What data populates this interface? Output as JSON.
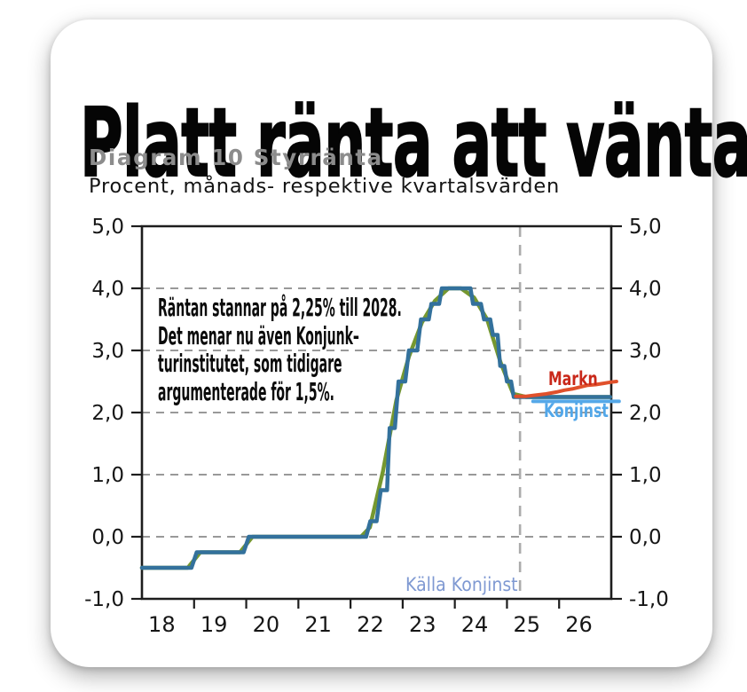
{
  "headline": "Platt ränta att vänta",
  "chart_header": {
    "title": "Diagram 10 Styrränta",
    "subtitle": "Procent, månads- respektive kvartalsvärden"
  },
  "annotation": {
    "text": "Räntan stannar på 2,25% till 2028.\nDet menar nu även Konjunk–\nturinstitutet, som tidigare\nargumenterade för 1,5%."
  },
  "labels": {
    "markn": "Markn",
    "konjinst": "Konjinst",
    "source": "Källa Konjinst"
  },
  "colors": {
    "headline": "#050505",
    "title_gray": "#8c8c8c",
    "markn_label": "#c9281a",
    "markn_line": "#e0502b",
    "konjinst_label": "#52a7e9",
    "konjinst_line": "#55a8e8",
    "monthly_line": "#33719c",
    "quarterly_line": "#76982f",
    "source_text": "#7f99d2",
    "gridline": "#999999",
    "divider": "#ababab",
    "axis": "#1d1d1d"
  },
  "chart_data": {
    "type": "line",
    "title": "Diagram 10 Styrränta",
    "subtitle": "Procent, månads- respektive kvartalsvärden",
    "xlim": [
      2018,
      2027
    ],
    "ylim": [
      -1,
      5
    ],
    "grid": "dashed horizontal at 0..4, solid box frame",
    "forecast_divider_x": 2025.25,
    "dashed_gridlines": [
      0,
      1,
      2,
      3,
      4
    ],
    "y_ticks": [
      {
        "v": 5,
        "label": "5,0"
      },
      {
        "v": 4,
        "label": "4,0"
      },
      {
        "v": 3,
        "label": "3,0"
      },
      {
        "v": 2,
        "label": "2,0"
      },
      {
        "v": 1,
        "label": "1,0"
      },
      {
        "v": 0,
        "label": "0,0"
      },
      {
        "v": -1,
        "label": "-1,0"
      }
    ],
    "x_labels": [
      {
        "year": 2018,
        "label": "18"
      },
      {
        "year": 2019,
        "label": "19"
      },
      {
        "year": 2020,
        "label": "20"
      },
      {
        "year": 2021,
        "label": "21"
      },
      {
        "year": 2022,
        "label": "22"
      },
      {
        "year": 2023,
        "label": "23"
      },
      {
        "year": 2024,
        "label": "24"
      },
      {
        "year": 2025,
        "label": "25"
      },
      {
        "year": 2026,
        "label": "26"
      }
    ],
    "series": [
      {
        "name": "styrranta-kvartalsvarden",
        "color": "#76982f",
        "stroke_width": 4.5,
        "points": [
          [
            2018.0,
            -0.5
          ],
          [
            2018.88,
            -0.5
          ],
          [
            2019.12,
            -0.25
          ],
          [
            2019.88,
            -0.25
          ],
          [
            2020.12,
            0.0
          ],
          [
            2022.2,
            0.0
          ],
          [
            2022.37,
            0.15
          ],
          [
            2022.62,
            1.05
          ],
          [
            2022.88,
            2.2
          ],
          [
            2023.12,
            2.9
          ],
          [
            2023.37,
            3.45
          ],
          [
            2023.62,
            3.8
          ],
          [
            2023.88,
            4.0
          ],
          [
            2024.12,
            4.0
          ],
          [
            2024.37,
            3.85
          ],
          [
            2024.62,
            3.5
          ],
          [
            2024.88,
            2.8
          ],
          [
            2025.12,
            2.3
          ],
          [
            2025.37,
            2.25
          ],
          [
            2026.98,
            2.25
          ]
        ]
      },
      {
        "name": "styrranta-manadsvarden",
        "color": "#33719c",
        "stroke_width": 4.5,
        "points": [
          [
            2018.0,
            -0.5
          ],
          [
            2018.95,
            -0.5
          ],
          [
            2019.05,
            -0.25
          ],
          [
            2019.95,
            -0.25
          ],
          [
            2020.05,
            0.0
          ],
          [
            2022.3,
            0.0
          ],
          [
            2022.38,
            0.25
          ],
          [
            2022.5,
            0.25
          ],
          [
            2022.58,
            0.75
          ],
          [
            2022.7,
            0.75
          ],
          [
            2022.75,
            1.75
          ],
          [
            2022.85,
            1.75
          ],
          [
            2022.92,
            2.5
          ],
          [
            2023.05,
            2.5
          ],
          [
            2023.12,
            3.0
          ],
          [
            2023.28,
            3.0
          ],
          [
            2023.35,
            3.5
          ],
          [
            2023.5,
            3.5
          ],
          [
            2023.55,
            3.75
          ],
          [
            2023.7,
            3.75
          ],
          [
            2023.75,
            4.0
          ],
          [
            2024.3,
            4.0
          ],
          [
            2024.35,
            3.75
          ],
          [
            2024.5,
            3.75
          ],
          [
            2024.56,
            3.5
          ],
          [
            2024.68,
            3.5
          ],
          [
            2024.73,
            3.25
          ],
          [
            2024.82,
            3.25
          ],
          [
            2024.87,
            2.75
          ],
          [
            2024.95,
            2.75
          ],
          [
            2025.0,
            2.5
          ],
          [
            2025.08,
            2.5
          ],
          [
            2025.13,
            2.25
          ],
          [
            2026.98,
            2.25
          ]
        ]
      },
      {
        "name": "konjinst-prognos",
        "color": "#55a8e8",
        "stroke_width": 4,
        "points": [
          [
            2025.5,
            2.18
          ],
          [
            2027.15,
            2.18
          ]
        ]
      },
      {
        "name": "markn-prissattning",
        "color": "#e0502b",
        "stroke_width": 4,
        "points": [
          [
            2025.17,
            2.26
          ],
          [
            2025.35,
            2.26
          ],
          [
            2025.55,
            2.28
          ],
          [
            2025.75,
            2.3
          ],
          [
            2025.95,
            2.33
          ],
          [
            2026.1,
            2.36
          ],
          [
            2026.25,
            2.38
          ],
          [
            2026.4,
            2.41
          ],
          [
            2026.55,
            2.44
          ],
          [
            2026.7,
            2.45
          ],
          [
            2026.85,
            2.47
          ],
          [
            2027.0,
            2.49
          ],
          [
            2027.1,
            2.5
          ]
        ]
      }
    ]
  }
}
